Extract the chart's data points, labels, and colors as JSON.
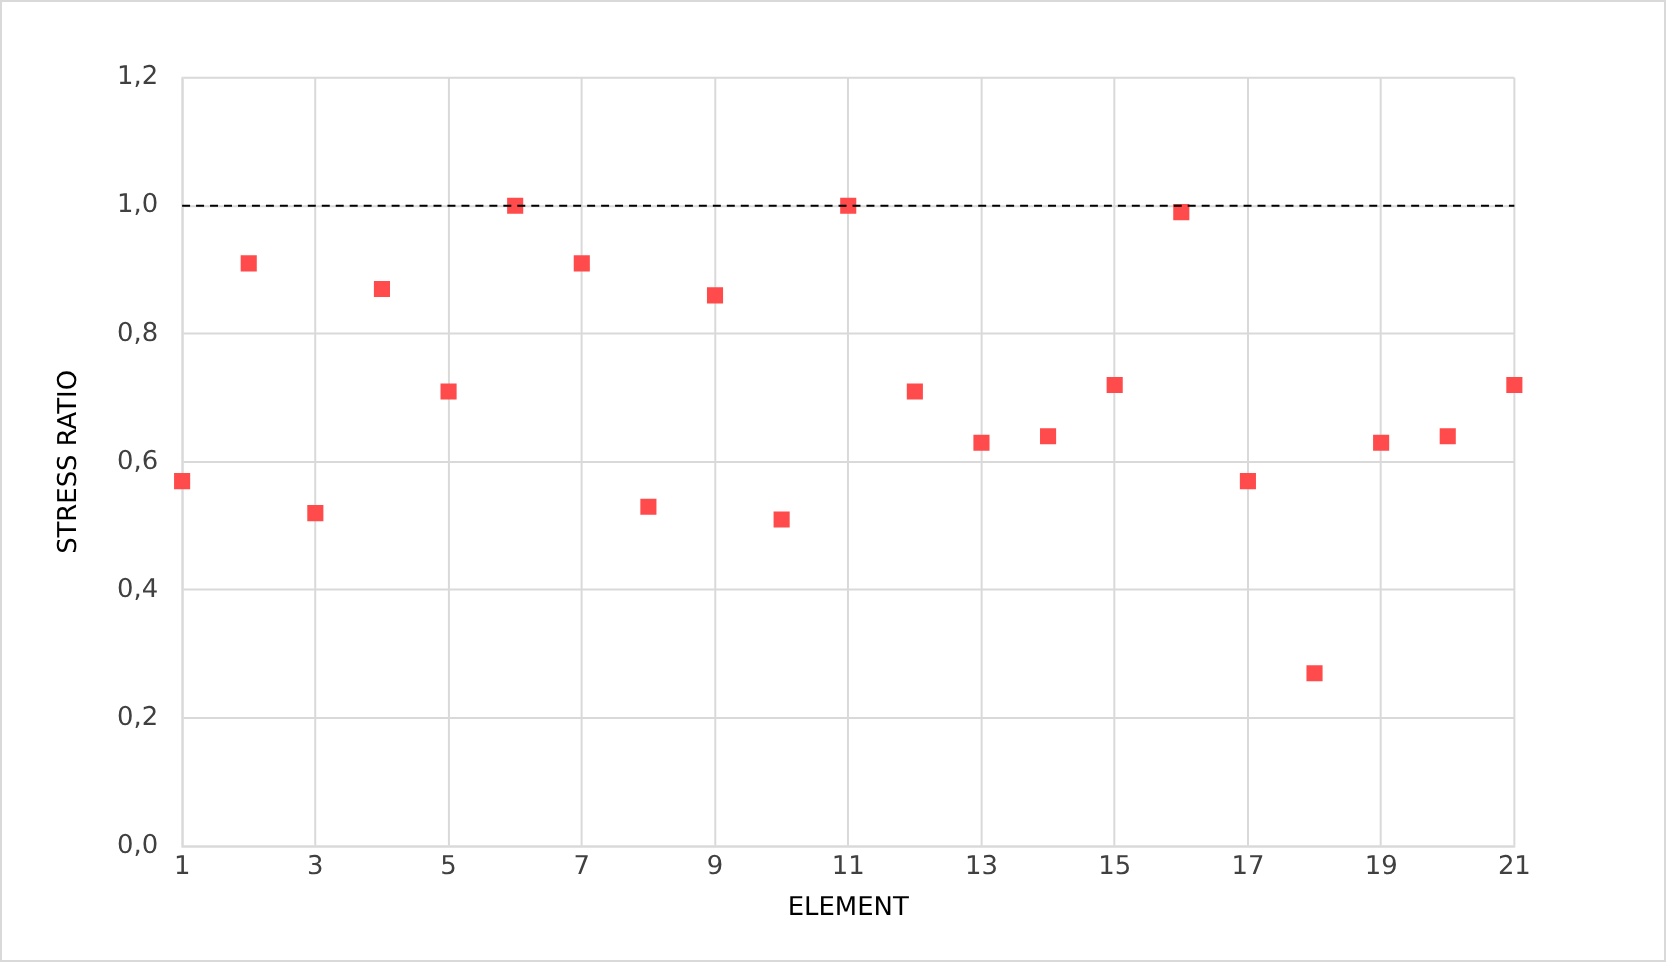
{
  "chart_data": {
    "type": "scatter",
    "xlabel": "ELEMENT",
    "ylabel": "STRESS RATIO",
    "x": [
      1,
      2,
      3,
      4,
      5,
      6,
      7,
      8,
      9,
      10,
      11,
      12,
      13,
      14,
      15,
      16,
      17,
      18,
      19,
      20,
      21
    ],
    "series": [
      {
        "color": "#ff4b4b",
        "values": [
          0.57,
          0.91,
          0.52,
          0.87,
          0.71,
          1.0,
          0.91,
          0.53,
          0.86,
          0.51,
          1.0,
          0.71,
          0.63,
          0.64,
          0.72,
          0.99,
          0.57,
          0.27,
          0.63,
          0.64,
          0.72
        ]
      }
    ],
    "xlim": [
      1,
      21
    ],
    "xticks": [
      1,
      3,
      5,
      7,
      9,
      11,
      13,
      15,
      17,
      19,
      21
    ],
    "ylim": [
      0,
      1.2
    ],
    "yticks": [
      {
        "value": 0,
        "label": "0,0"
      },
      {
        "value": 0.2,
        "label": "0,2"
      },
      {
        "value": 0.4,
        "label": "0,4"
      },
      {
        "value": 0.6,
        "label": "0,6"
      },
      {
        "value": 0.8,
        "label": "0,8"
      },
      {
        "value": 1.0,
        "label": "1,0"
      },
      {
        "value": 1.2,
        "label": "1,2"
      }
    ],
    "ref_lines": [
      {
        "axis": "y",
        "value": 1.0,
        "color": "#000000",
        "line_style": "dashed"
      }
    ],
    "grid": true,
    "legend": false,
    "marker": "square"
  }
}
